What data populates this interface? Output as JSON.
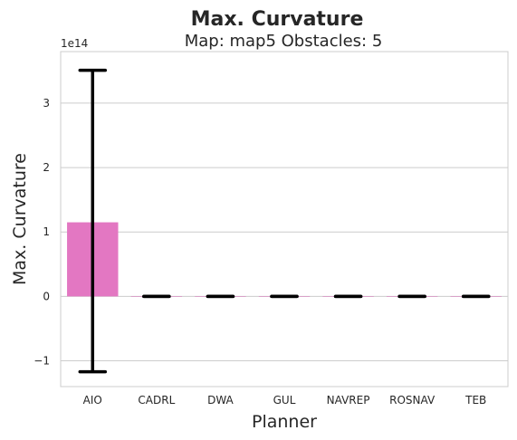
{
  "chart_data": {
    "type": "bar",
    "title": "Max. Curvature",
    "subtitle": "Map: map5 Obstacles: 5",
    "xlabel": "Planner",
    "ylabel": "Max. Curvature",
    "y_offset_label": "1e14",
    "y_scale": 100000000000000.0,
    "ylim": [
      -140000000000000.0,
      380000000000000.0
    ],
    "yticks": [
      -100000000000000.0,
      0,
      100000000000000.0,
      200000000000000.0,
      300000000000000.0
    ],
    "ytick_labels": [
      "−1",
      "0",
      "1",
      "2",
      "3"
    ],
    "grid": "horizontal",
    "categories": [
      "AIO",
      "CADRL",
      "DWA",
      "GUL",
      "NAVREP",
      "ROSNAV",
      "TEB"
    ],
    "values": [
      115000000000000.0,
      0,
      0,
      0,
      0,
      0,
      0
    ],
    "error_low": [
      -117000000000000.0,
      0,
      0,
      0,
      0,
      0,
      0
    ],
    "error_high": [
      351000000000000.0,
      0,
      0,
      0,
      0,
      0,
      0
    ],
    "bar_colors": [
      "#e377c2",
      "#e377c2",
      "#e377c2",
      "#e377c2",
      "#e377c2",
      "#e377c2",
      "#e377c2"
    ],
    "error_color": "#000000"
  }
}
